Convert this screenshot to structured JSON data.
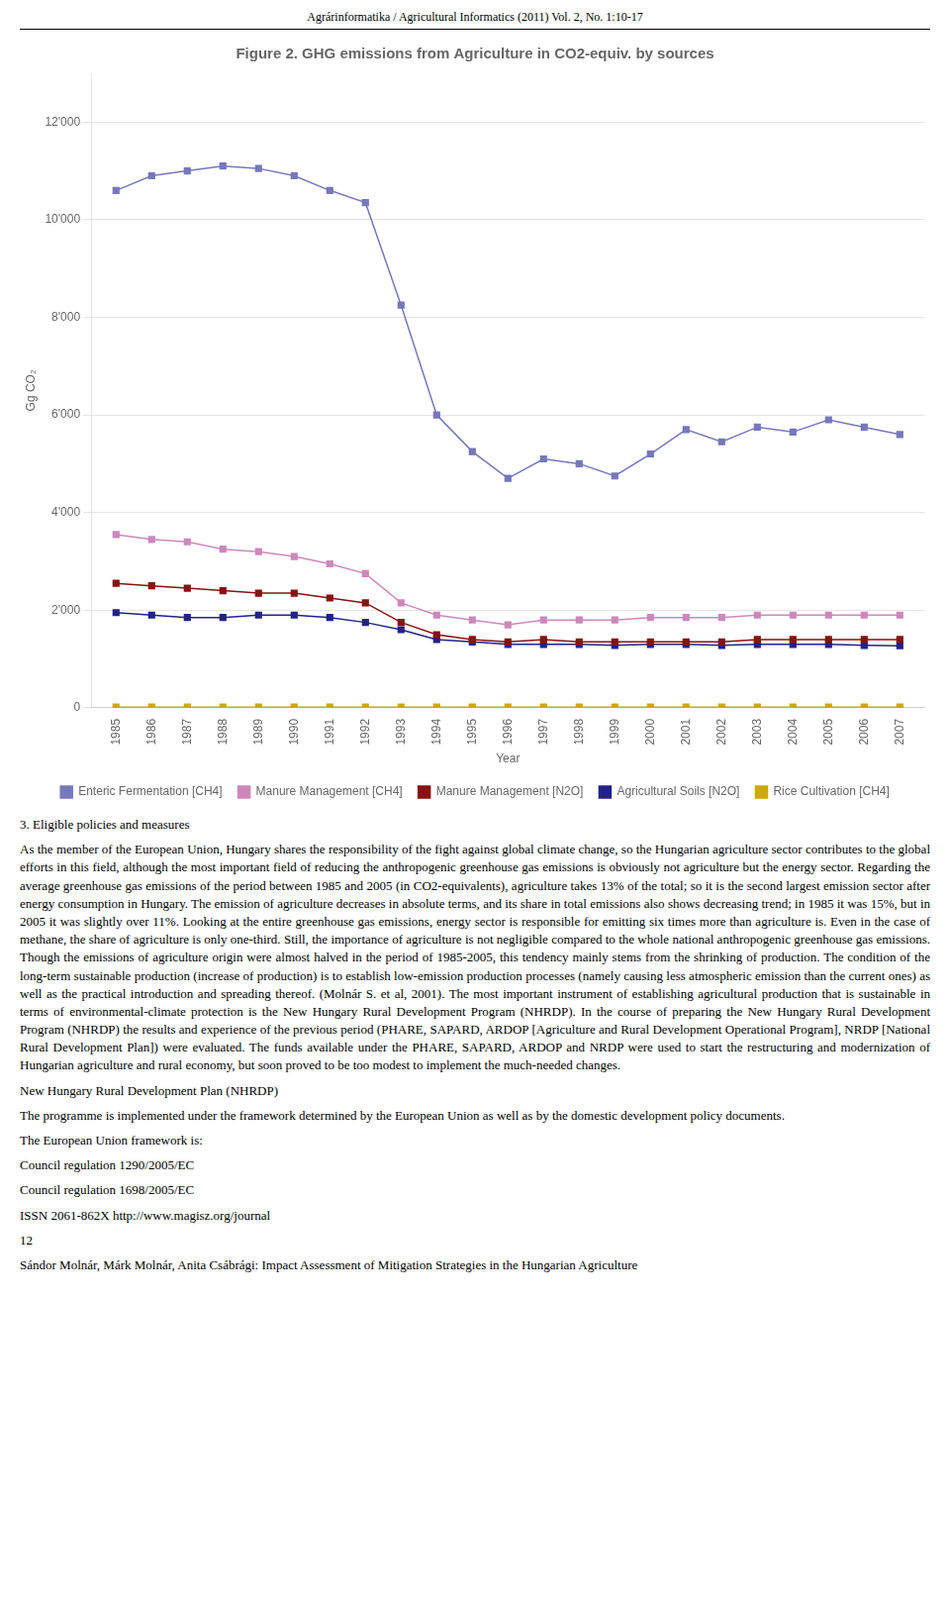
{
  "chart_data": {
    "type": "line",
    "title": "Figure 2. GHG emissions from Agriculture in CO2-equiv. by sources",
    "x_label": "Year",
    "y_label": "Gg CO₂",
    "x": [
      1985,
      1986,
      1987,
      1988,
      1989,
      1990,
      1991,
      1992,
      1993,
      1994,
      1995,
      1996,
      1997,
      1998,
      1999,
      2000,
      2001,
      2002,
      2003,
      2004,
      2005,
      2006,
      2007
    ],
    "series": [
      {
        "name": "Enteric Fermentation [CH4]",
        "color": "#7777BB",
        "marker": "square",
        "line_style": "solid",
        "values": [
          10600,
          10900,
          11000,
          11100,
          11050,
          10900,
          10600,
          10350,
          8250,
          6000,
          5250,
          4700,
          5100,
          5000,
          4750,
          5200,
          5700,
          5450,
          5750,
          5650,
          5900,
          5750,
          5600
        ]
      },
      {
        "name": "Manure Management [CH4]",
        "color": "#CC88BB",
        "marker": "square",
        "line_style": "solid",
        "values": [
          3550,
          3450,
          3400,
          3250,
          3200,
          3100,
          2950,
          2750,
          2150,
          1900,
          1800,
          1700,
          1800,
          1800,
          1800,
          1850,
          1850,
          1850,
          1900,
          1900,
          1900,
          1900,
          1900
        ]
      },
      {
        "name": "Manure Management [N2O]",
        "color": "#881111",
        "marker": "square",
        "line_style": "solid",
        "values": [
          2550,
          2500,
          2450,
          2400,
          2350,
          2350,
          2250,
          2150,
          1750,
          1500,
          1400,
          1350,
          1400,
          1350,
          1350,
          1350,
          1350,
          1350,
          1400,
          1400,
          1400,
          1400,
          1400
        ]
      },
      {
        "name": "Agricultural Soils [N2O]",
        "color": "#222288",
        "marker": "square",
        "line_style": "solid",
        "values": [
          1950,
          1900,
          1850,
          1850,
          1900,
          1900,
          1850,
          1750,
          1600,
          1400,
          1350,
          1300,
          1300,
          1300,
          1280,
          1300,
          1300,
          1280,
          1300,
          1300,
          1300,
          1280,
          1270
        ]
      },
      {
        "name": "Rice Cultivation [CH4]",
        "color": "#CCAA00",
        "marker": "square",
        "line_style": "solid",
        "values": [
          15,
          15,
          15,
          15,
          15,
          15,
          15,
          15,
          15,
          15,
          15,
          15,
          15,
          15,
          15,
          15,
          15,
          15,
          15,
          15,
          15,
          15,
          15
        ]
      }
    ],
    "xlim": [
      1984.3,
      2007.7
    ],
    "xticks": [
      1985,
      1986,
      1987,
      1988,
      1989,
      1990,
      1991,
      1992,
      1993,
      1994,
      1995,
      1996,
      1997,
      1998,
      1999,
      2000,
      2001,
      2002,
      2003,
      2004,
      2005,
      2006,
      2007
    ],
    "ylim": [
      0,
      13000
    ],
    "yticks": [
      0,
      {
        "value": 2000,
        "label": "2'000"
      },
      {
        "value": 4000,
        "label": "4'000"
      },
      {
        "value": 6000,
        "label": "6'000"
      },
      {
        "value": 8000,
        "label": "8'000"
      },
      {
        "value": 10000,
        "label": "10'000"
      },
      {
        "value": 12000,
        "label": "12'000"
      }
    ],
    "grid": "y",
    "legend": "bottom",
    "annotations": [
      "Agrárinformatika / Agricultural Informatics (2011) Vol. 2, No. 1:10-17",
      "3. Eligible policies and measures",
      "    As the member of the European Union, Hungary shares the responsibility of the fight against global climate change, so the Hungarian agriculture sector contributes to the global efforts in this field, although the most important field of reducing the anthropogenic greenhouse gas emissions is obviously not agriculture but the energy sector. Regarding the average greenhouse gas emissions of the period between 1985 and 2005 (in CO2-equivalents), agriculture takes 13% of the total; so it is the second largest emission sector after energy consumption in Hungary. The emission of agriculture decreases in absolute terms, and its share in total emissions also shows decreasing trend; in 1985 it was 15%, but in 2005 it was slightly over 11%. Looking at the entire greenhouse gas emissions, energy sector is responsible for emitting six times more than agriculture is. Even in the case of methane, the share of agriculture is only one-third. Still, the importance of agriculture is not negligible compared to the whole national anthropogenic greenhouse gas emissions. Though the emissions of agriculture origin were almost halved in the period of 1985-2005, this tendency mainly stems from the shrinking of production.  The condition of the long-term sustainable production (increase of production) is to establish low-emission production processes (namely causing less atmospheric emission than the current ones) as well as the practical introduction and spreading thereof. (Molnár S. et al, 2001). The most important instrument of establishing agricultural production that is sustainable in terms of environmental-climate protection is the New Hungary Rural Development Program (NHRDP). In the course of preparing the New Hungary Rural Development Program (NHRDP) the results and experience of the previous period (PHARE, SAPARD, ARDOP [Agriculture and Rural Development Operational Program], NRDP [National Rural Development Plan]) were evaluated. The funds available under the PHARE, SAPARD, ARDOP and NRDP were used to start the restructuring and modernization of Hungarian agriculture and rural economy, but soon proved to be too modest to implement the much-needed changes.",
      "New Hungary Rural Development Plan (NHRDP)",
      "    The programme is implemented under the framework determined by the European Union as well as by the domestic development policy documents.",
      "The European Union framework is:",
      "Council regulation 1290/2005/EC",
      "Council regulation 1698/2005/EC",
      "ISSN 2061-862X http://www.magisz.org/journal",
      "12",
      "Sándor Molnár, Márk Molnár, Anita Csábrági: Impact Assessment of Mitigation Strategies in the Hungarian Agriculture"
    ]
  }
}
